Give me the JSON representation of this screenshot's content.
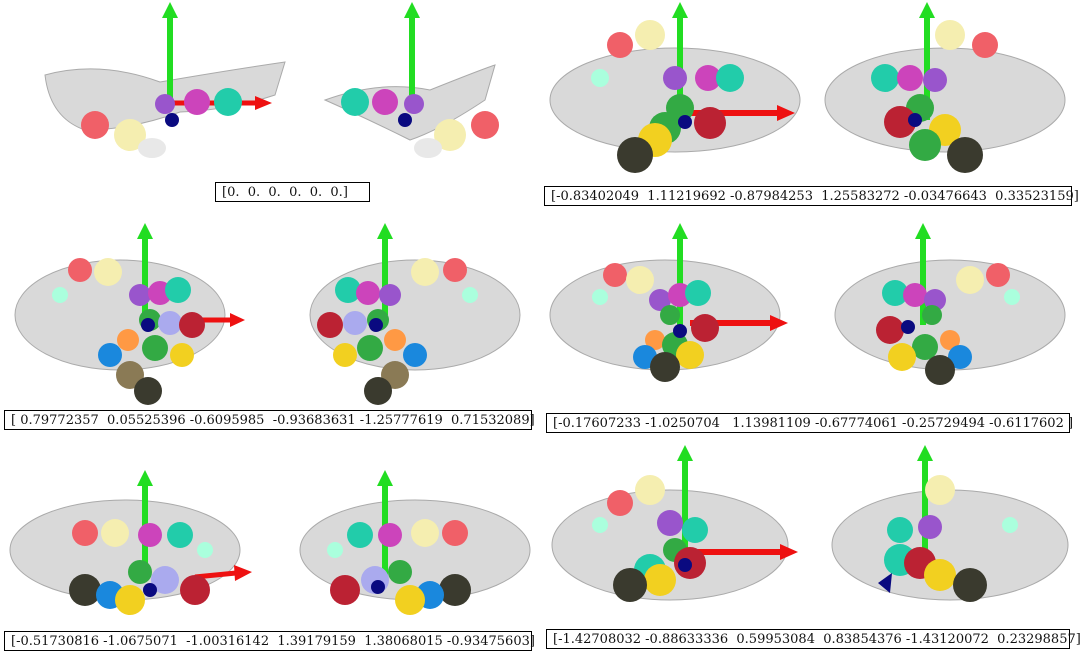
{
  "panels": [
    {
      "id": "a",
      "vector": "[0.  0.  0.  0.  0.  0.]"
    },
    {
      "id": "b",
      "vector": "[-0.83402049  1.11219692 -0.87984253  1.25583272 -0.03476643  0.33523159]"
    },
    {
      "id": "c",
      "vector": "[ 0.79772357  0.05525396 -0.6095985  -0.93683631 -1.25777619  0.71532089]"
    },
    {
      "id": "d",
      "vector": "[-0.17607233 -1.0250704   1.13981109 -0.67774061 -0.25729494 -0.6117602 ]"
    },
    {
      "id": "e",
      "vector": "[-0.51730816 -1.0675071  -1.00316142  1.39179159  1.38068015 -0.93475603]"
    },
    {
      "id": "f",
      "vector": "[-1.42708032 -0.88633336  0.59953084  0.83854376 -1.43120072  0.23298857]"
    }
  ],
  "colors": {
    "hand_mesh": "#d9d9d9",
    "y_axis": "#22dd22",
    "x_axis": "#ee1111",
    "wrist_joint": "#0a0a80",
    "thumb": [
      "#e8e8e8",
      "#f5eeb0",
      "#f06068"
    ],
    "index": [
      "#aaffdd",
      "#22ccaa",
      "#cc44bb",
      "#9955cc"
    ],
    "middle": [
      "#3a3a2e",
      "#8a7a55",
      "#1a88dd",
      "#ff9944"
    ],
    "ring": [
      "#f2d020",
      "#33aa44",
      "#bb2233",
      "#aaaaee"
    ]
  },
  "icons": [
    "hand-mesh",
    "coordinate-axes",
    "joint-spheres"
  ]
}
